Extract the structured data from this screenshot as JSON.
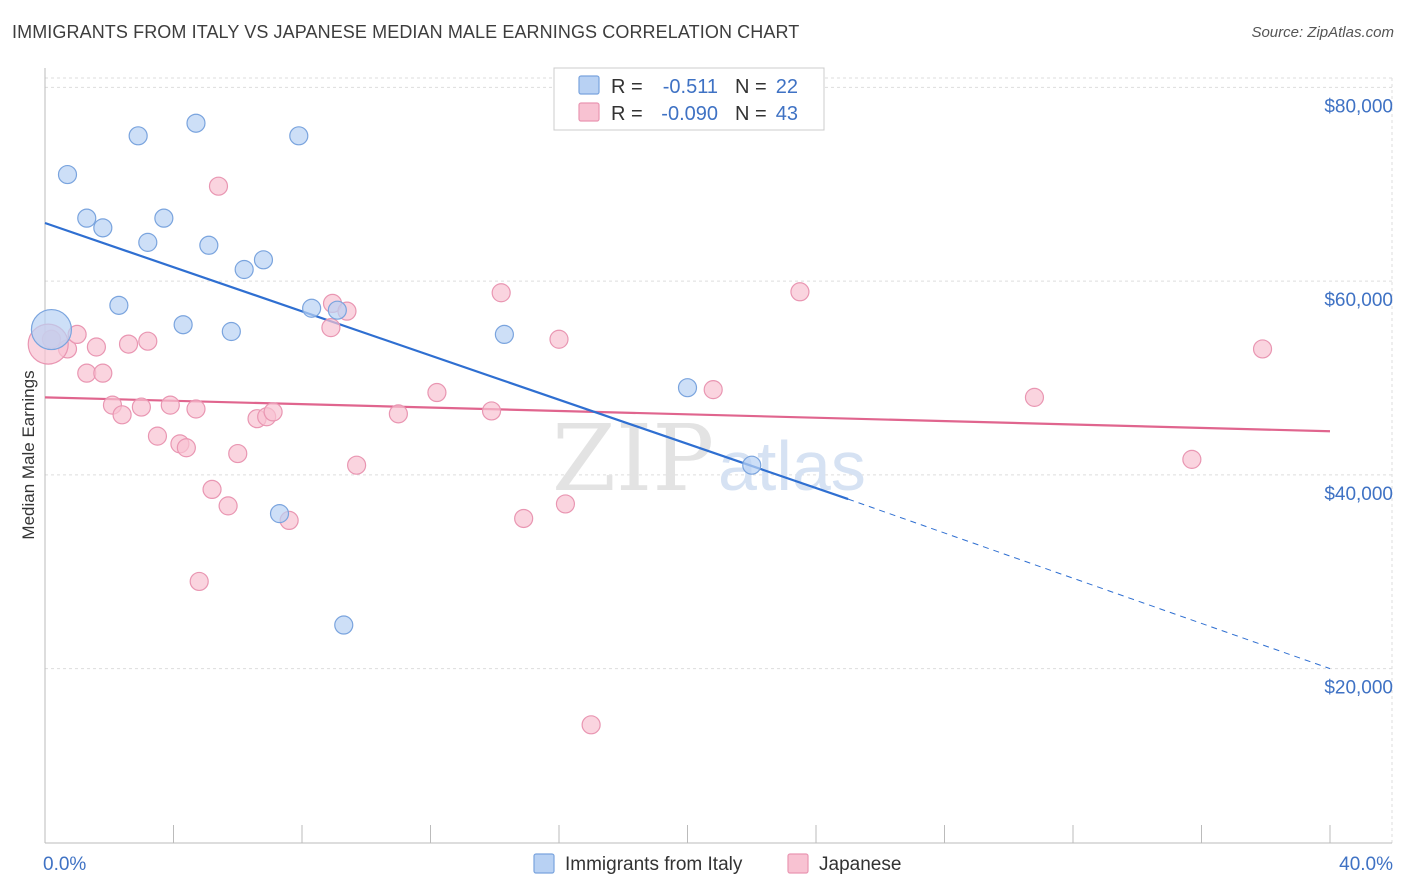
{
  "title": "IMMIGRANTS FROM ITALY VS JAPANESE MEDIAN MALE EARNINGS CORRELATION CHART",
  "source": "Source: ZipAtlas.com",
  "watermark": {
    "part1": "ZIP",
    "part2": "atlas"
  },
  "colors": {
    "italy_fill": "#b8d1f3",
    "italy_stroke": "#7aa4de",
    "italy_line": "#2f6fd1",
    "japanese_fill": "#f8c2d2",
    "japanese_stroke": "#e996b2",
    "japanese_line": "#e0658e",
    "axis_text": "#3f72c4",
    "grid": "#dddddd"
  },
  "legend": {
    "rows": [
      {
        "r_label": "R =",
        "r_value": "-0.511",
        "n_label": "N =",
        "n_value": "22"
      },
      {
        "r_label": "R =",
        "r_value": "-0.090",
        "n_label": "N =",
        "n_value": "43"
      }
    ]
  },
  "chart_data": {
    "type": "scatter",
    "xlabel": "",
    "ylabel": "Median Male Earnings",
    "xlim": [
      0,
      40
    ],
    "ylim": [
      2000,
      82000
    ],
    "x_tick_labels": [
      "0.0%",
      "40.0%"
    ],
    "y_ticks": [
      {
        "value": 20000,
        "label": "$20,000"
      },
      {
        "value": 40000,
        "label": "$40,000"
      },
      {
        "value": 60000,
        "label": "$60,000"
      },
      {
        "value": 80000,
        "label": "$80,000"
      }
    ],
    "grid": "horizontal-dashed",
    "series": [
      {
        "name": "Immigrants from Italy",
        "points": [
          [
            0.2,
            55000
          ],
          [
            0.7,
            71000
          ],
          [
            1.3,
            66500
          ],
          [
            1.8,
            65500
          ],
          [
            2.3,
            57500
          ],
          [
            2.9,
            75000
          ],
          [
            3.2,
            64000
          ],
          [
            3.7,
            66500
          ],
          [
            4.3,
            55500
          ],
          [
            4.7,
            76300
          ],
          [
            5.1,
            63700
          ],
          [
            5.8,
            54800
          ],
          [
            6.2,
            61200
          ],
          [
            6.8,
            62200
          ],
          [
            7.3,
            36000
          ],
          [
            7.9,
            75000
          ],
          [
            8.3,
            57200
          ],
          [
            9.1,
            57000
          ],
          [
            9.3,
            24500
          ],
          [
            14.3,
            54500
          ],
          [
            20.0,
            49000
          ],
          [
            22.0,
            41000
          ]
        ],
        "trend": {
          "x0": 0,
          "y0": 66000,
          "x1": 25,
          "y1": 37500,
          "dashed_to": {
            "x": 40,
            "y": 20000
          }
        }
      },
      {
        "name": "Japanese",
        "points": [
          [
            0.2,
            54000
          ],
          [
            0.7,
            53000
          ],
          [
            1.0,
            54500
          ],
          [
            1.3,
            50500
          ],
          [
            1.6,
            53200
          ],
          [
            1.8,
            50500
          ],
          [
            2.1,
            47200
          ],
          [
            2.4,
            46200
          ],
          [
            2.6,
            53500
          ],
          [
            3.0,
            47000
          ],
          [
            3.2,
            53800
          ],
          [
            3.5,
            44000
          ],
          [
            3.9,
            47200
          ],
          [
            4.2,
            43200
          ],
          [
            4.4,
            42800
          ],
          [
            4.7,
            46800
          ],
          [
            4.8,
            29000
          ],
          [
            5.2,
            38500
          ],
          [
            5.4,
            69800
          ],
          [
            5.7,
            36800
          ],
          [
            6.0,
            42200
          ],
          [
            6.6,
            45800
          ],
          [
            6.9,
            46000
          ],
          [
            7.1,
            46500
          ],
          [
            7.6,
            35300
          ],
          [
            8.9,
            55200
          ],
          [
            8.95,
            57700
          ],
          [
            9.4,
            56900
          ],
          [
            9.7,
            41000
          ],
          [
            11.0,
            46300
          ],
          [
            12.2,
            48500
          ],
          [
            13.9,
            46600
          ],
          [
            14.2,
            58800
          ],
          [
            14.9,
            35500
          ],
          [
            16.0,
            54000
          ],
          [
            16.2,
            37000
          ],
          [
            17.0,
            14200
          ],
          [
            20.8,
            48800
          ],
          [
            23.5,
            58900
          ],
          [
            30.8,
            48000
          ],
          [
            35.7,
            41600
          ],
          [
            37.9,
            53000
          ],
          [
            0.1,
            53500
          ]
        ],
        "trend": {
          "x0": 0,
          "y0": 48000,
          "x1": 40,
          "y1": 44500
        }
      }
    ]
  }
}
